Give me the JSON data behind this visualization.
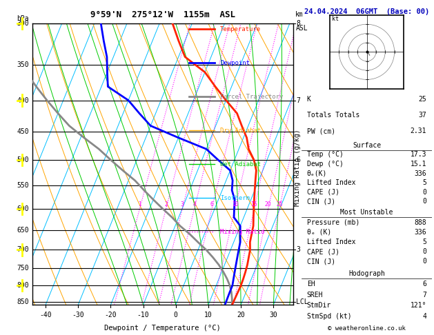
{
  "title_left": "9°59'N  275°12'W  1155m  ASL",
  "title_right": "24.04.2024  06GMT  (Base: 00)",
  "xlabel": "Dewpoint / Temperature (°C)",
  "pressure_levels": [
    300,
    350,
    400,
    450,
    500,
    550,
    600,
    650,
    700,
    750,
    800,
    850
  ],
  "pressure_min": 300,
  "pressure_max": 860,
  "temp_min": -44,
  "temp_max": 36,
  "skew_factor": 35.0,
  "background_color": "#ffffff",
  "isotherm_color": "#00bfff",
  "dry_adiabat_color": "#ffa500",
  "wet_adiabat_color": "#00cc00",
  "mixing_ratio_color": "#ff00ff",
  "temp_color": "#ff2200",
  "dewpoint_color": "#0000ff",
  "parcel_color": "#888888",
  "temperature_data": {
    "pressure": [
      860,
      840,
      820,
      800,
      780,
      760,
      740,
      720,
      700,
      680,
      660,
      640,
      620,
      600,
      580,
      560,
      540,
      520,
      500,
      480,
      460,
      440,
      420,
      400,
      380,
      360,
      340,
      320,
      300
    ],
    "temperature": [
      17.3,
      17.4,
      17.5,
      17.6,
      17.5,
      17.3,
      17.0,
      16.5,
      16.0,
      15.0,
      14.5,
      14.0,
      13.0,
      12.0,
      11.0,
      10.0,
      9.0,
      8.0,
      6.0,
      3.0,
      1.0,
      -2.0,
      -5.0,
      -10.0,
      -15.0,
      -20.0,
      -28.0,
      -32.0,
      -36.0
    ]
  },
  "dewpoint_data": {
    "pressure": [
      860,
      840,
      820,
      800,
      780,
      760,
      740,
      720,
      700,
      680,
      660,
      640,
      620,
      600,
      580,
      560,
      540,
      520,
      500,
      480,
      460,
      440,
      420,
      400,
      380,
      360,
      340,
      320,
      300
    ],
    "dewpoint": [
      15.1,
      15.05,
      15.0,
      15.0,
      14.5,
      14.0,
      13.5,
      13.0,
      12.5,
      12.0,
      11.0,
      10.0,
      7.0,
      6.0,
      5.0,
      3.0,
      2.0,
      0.0,
      -5.0,
      -10.0,
      -20.0,
      -30.0,
      -35.0,
      -40.0,
      -48.0,
      -50.0,
      -52.0,
      -55.0,
      -58.0
    ]
  },
  "parcel_data": {
    "pressure": [
      860,
      840,
      820,
      800,
      780,
      760,
      740,
      720,
      700,
      680,
      660,
      640,
      620,
      600,
      580,
      560,
      540,
      520,
      500,
      480,
      460,
      440,
      420,
      400,
      380,
      360,
      340,
      320,
      300
    ],
    "temperature": [
      17.3,
      16.5,
      15.5,
      14.2,
      12.5,
      10.5,
      8.2,
      5.5,
      2.5,
      -1.0,
      -4.5,
      -8.5,
      -12.0,
      -16.0,
      -20.0,
      -24.0,
      -28.0,
      -33.0,
      -38.0,
      -43.0,
      -49.0,
      -55.0,
      -60.0,
      -65.0,
      -70.0,
      -75.0,
      -80.0,
      -85.0,
      -90.0
    ]
  },
  "mixing_ratios": [
    1,
    2,
    3,
    4,
    6,
    10,
    15,
    20,
    25
  ],
  "km_labels": [
    {
      "pressure": 850,
      "label": "LCL"
    },
    {
      "pressure": 700,
      "label": "3"
    },
    {
      "pressure": 500,
      "label": "6"
    },
    {
      "pressure": 400,
      "label": "7"
    },
    {
      "pressure": 300,
      "label": "8"
    }
  ],
  "legend": [
    {
      "label": "Temperature",
      "color": "#ff2200",
      "lw": 2,
      "ls": "-"
    },
    {
      "label": "Dewpoint",
      "color": "#0000ff",
      "lw": 2,
      "ls": "-"
    },
    {
      "label": "Parcel Trajectory",
      "color": "#888888",
      "lw": 2,
      "ls": "-"
    },
    {
      "label": "Dry Adiabat",
      "color": "#ffa500",
      "lw": 1,
      "ls": "-"
    },
    {
      "label": "Wet Adiabat",
      "color": "#00cc00",
      "lw": 1,
      "ls": "-"
    },
    {
      "label": "Isotherm",
      "color": "#00bfff",
      "lw": 1,
      "ls": "-"
    },
    {
      "label": "Mixing Ratio",
      "color": "#ff00ff",
      "lw": 1,
      "ls": ":"
    }
  ],
  "info_K": "25",
  "info_TT": "37",
  "info_PW": "2.31",
  "surf_temp": "17.3",
  "surf_dewp": "15.1",
  "surf_thetae": "336",
  "surf_li": "5",
  "surf_cape": "0",
  "surf_cin": "0",
  "mu_press": "888",
  "mu_thetae": "336",
  "mu_li": "5",
  "mu_cape": "0",
  "mu_cin": "0",
  "hodo_eh": "6",
  "hodo_sreh": "7",
  "hodo_stmdir": "121°",
  "hodo_stmspd": "4",
  "copyright": "© weatheronline.co.uk"
}
